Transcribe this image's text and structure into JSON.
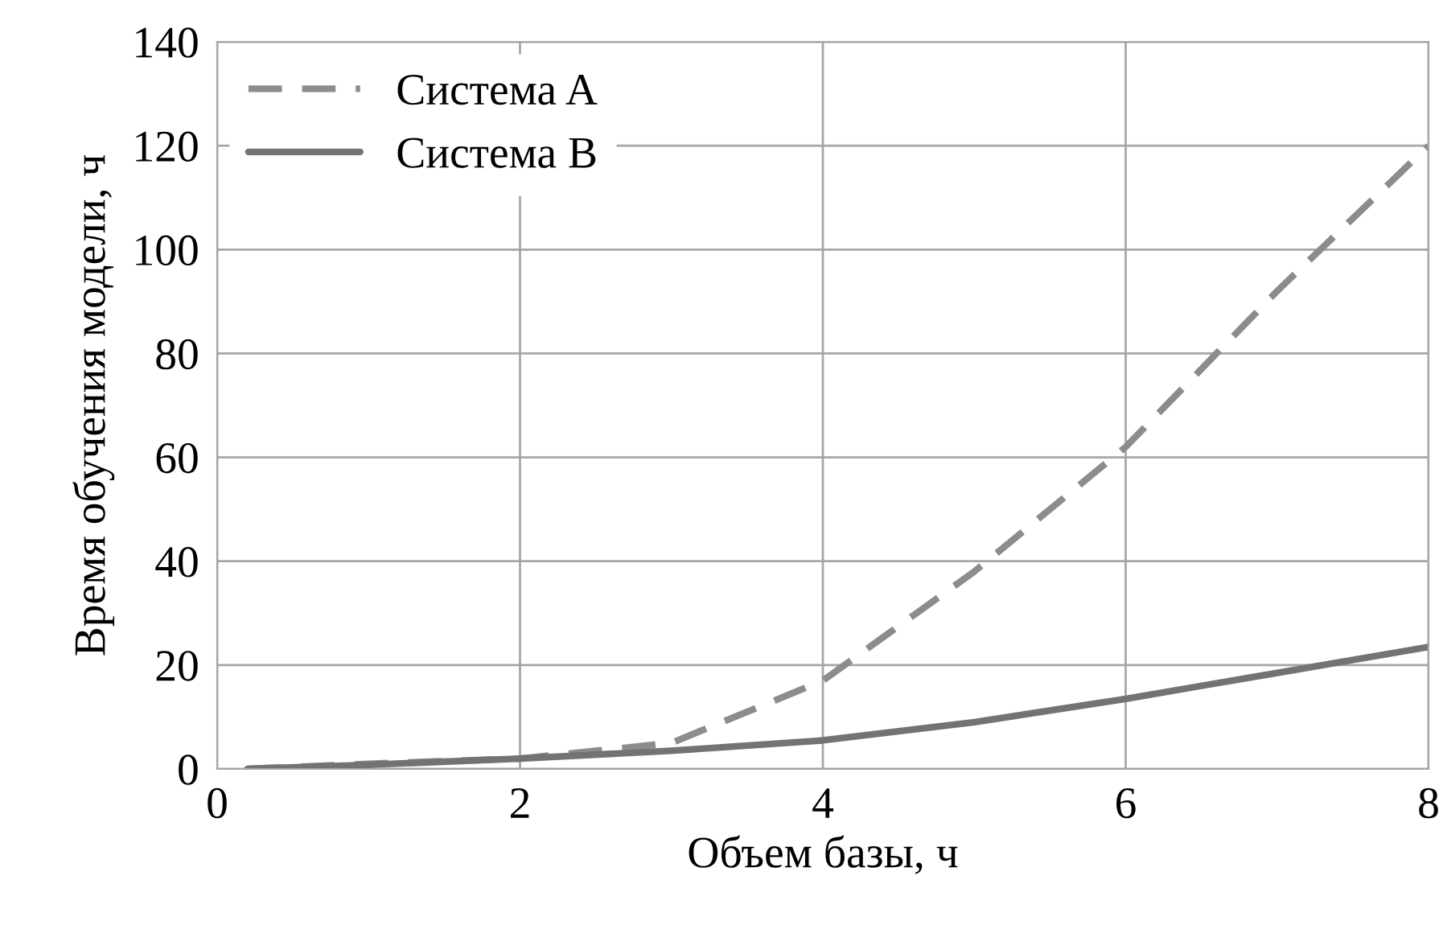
{
  "chart_data": {
    "type": "line",
    "xlabel": "Объем базы, ч",
    "ylabel": "Время обучения модели, ч",
    "xlim": [
      0,
      8
    ],
    "xticks": [
      0,
      2,
      4,
      6,
      8
    ],
    "ylim": [
      0,
      140
    ],
    "yticks": [
      0,
      20,
      40,
      60,
      80,
      100,
      120,
      140
    ],
    "grid": true,
    "legend": "top left",
    "marker": "none",
    "series": [
      {
        "name": "Система A",
        "color": "#8c8c8c",
        "line_style": "dashed",
        "x": [
          0.2,
          1,
          2,
          3,
          4,
          5,
          6,
          7,
          8
        ],
        "values": [
          0,
          1,
          2,
          5,
          17,
          38,
          62,
          92,
          120
        ]
      },
      {
        "name": "Система B",
        "color": "#737373",
        "line_style": "solid",
        "x": [
          0.2,
          1,
          2,
          3,
          4,
          5,
          6,
          7,
          8
        ],
        "values": [
          0,
          0.8,
          2,
          3.5,
          5.5,
          9,
          13.5,
          18.5,
          23.5
        ]
      }
    ]
  }
}
